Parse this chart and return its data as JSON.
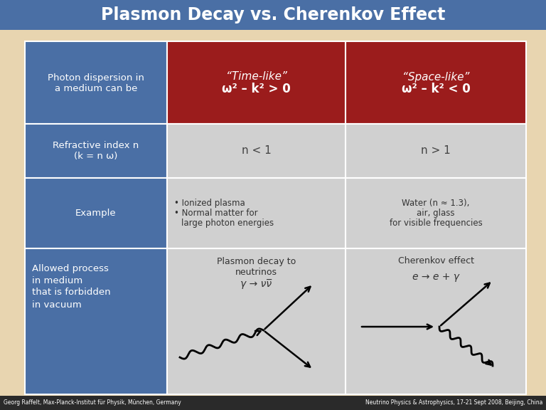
{
  "title": "Plasmon Decay vs. Cherenkov Effect",
  "title_bg": "#4a6fa5",
  "title_color": "white",
  "bg_color": "#e8d5b0",
  "blue_cell_color": "#4a6fa5",
  "red_cell_color": "#9b1c1c",
  "light_cell_color": "#d0d0d0",
  "footer_left": "Georg Raffelt, Max-Planck-Institut für Physik, München, Germany",
  "footer_right": "Neutrino Physics & Astrophysics, 17-21 Sept 2008, Beijing, China",
  "col2_header_line1": "“Time-like”",
  "col2_header_line2": "ω² – k² > 0",
  "col3_header_line1": "“Space-like”",
  "col3_header_line2": "ω² – k² < 0",
  "row1_col1_line1": "Photon dispersion in",
  "row1_col1_line2": "a medium can be",
  "row2_col1_line1": "Refractive index n",
  "row2_col1_line2": "(k = n ω)",
  "row2_col2": "n < 1",
  "row2_col3": "n > 1",
  "row3_col1": "Example",
  "row3_col2_line1": "• Ionized plasma",
  "row3_col2_line2": "• Normal matter for",
  "row3_col2_line3": "large photon energies",
  "row3_col3_line1": "Water (n ≈ 1.3),",
  "row3_col3_line2": "air, glass",
  "row3_col3_line3": "for visible frequencies",
  "row4_col1_line1": "Allowed process",
  "row4_col1_line2": "in medium",
  "row4_col1_line3": "that is forbidden",
  "row4_col1_line4": "in vacuum",
  "row4_col2_line1": "Plasmon decay to",
  "row4_col2_line2": "neutrinos",
  "row4_col2_eq": "γ → νν̅",
  "row4_col3_line1": "Cherenkov effect",
  "row4_col3_eq": "e → e + γ"
}
